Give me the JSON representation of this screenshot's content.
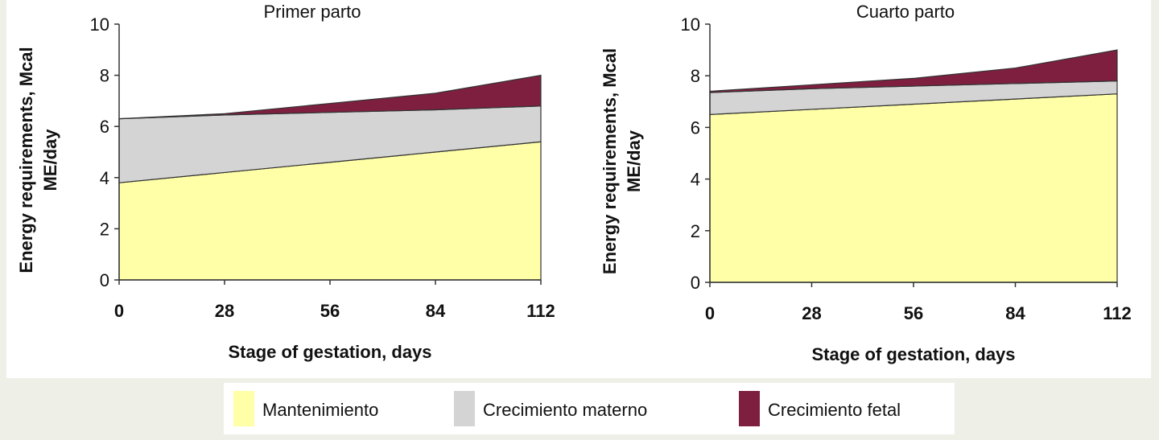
{
  "chart_data": [
    {
      "type": "area",
      "stacked": true,
      "title": "Primer parto",
      "x": [
        0,
        28,
        56,
        84,
        112
      ],
      "xlabel": "Stage of gestation, days",
      "ylabel": [
        "Energy requirements, Mcal",
        "ME/day"
      ],
      "xlim": [
        0,
        112
      ],
      "xticks": [
        0,
        28,
        56,
        84,
        112
      ],
      "ylim": [
        0,
        10
      ],
      "yticks": [
        0,
        2,
        4,
        6,
        8,
        10
      ],
      "series": [
        {
          "name": "Mantenimiento",
          "color": "#ffffa8",
          "values": [
            3.8,
            4.2,
            4.6,
            5.0,
            5.4
          ]
        },
        {
          "name": "Crecimiento materno",
          "color": "#d4d4d4",
          "values": [
            2.5,
            2.25,
            1.95,
            1.65,
            1.4
          ]
        },
        {
          "name": "Crecimiento fetal",
          "color": "#7e1f3f",
          "values": [
            0,
            0.05,
            0.35,
            0.65,
            1.2
          ]
        }
      ]
    },
    {
      "type": "area",
      "stacked": true,
      "title": "Cuarto parto",
      "x": [
        0,
        28,
        56,
        84,
        112
      ],
      "xlabel": "Stage of gestation, days",
      "ylabel": [
        "Energy requirements, Mcal",
        "ME/day"
      ],
      "xlim": [
        0,
        112
      ],
      "xticks": [
        0,
        28,
        56,
        84,
        112
      ],
      "ylim": [
        0,
        10
      ],
      "yticks": [
        0,
        2,
        4,
        6,
        8,
        10
      ],
      "series": [
        {
          "name": "Mantenimiento",
          "color": "#ffffa8",
          "values": [
            6.5,
            6.7,
            6.9,
            7.1,
            7.3
          ]
        },
        {
          "name": "Crecimiento materno",
          "color": "#d4d4d4",
          "values": [
            0.85,
            0.8,
            0.7,
            0.6,
            0.5
          ]
        },
        {
          "name": "Crecimiento fetal",
          "color": "#7e1f3f",
          "values": [
            0.05,
            0.15,
            0.3,
            0.6,
            1.2
          ]
        }
      ]
    }
  ]
}
